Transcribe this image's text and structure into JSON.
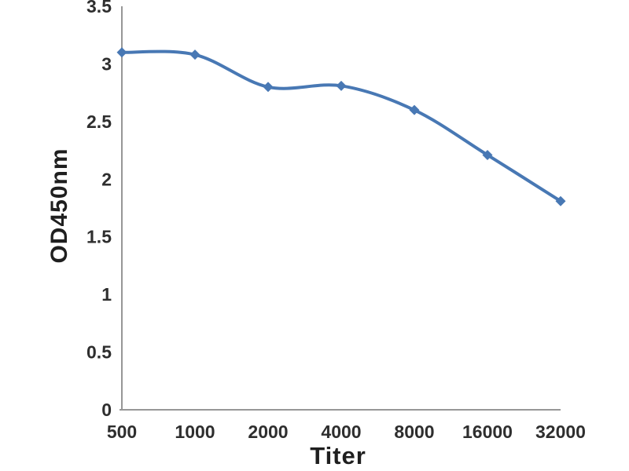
{
  "chart_data": {
    "type": "line",
    "title": "",
    "xlabel": "Titer",
    "ylabel": "OD450nm",
    "categories": [
      "500",
      "1000",
      "2000",
      "4000",
      "8000",
      "16000",
      "32000"
    ],
    "values": [
      3.1,
      3.08,
      2.8,
      2.81,
      2.6,
      2.21,
      1.81
    ],
    "ylim": [
      0,
      3.5
    ],
    "yticks": [
      0,
      0.5,
      1,
      1.5,
      2,
      2.5,
      3,
      3.5
    ],
    "ytick_labels": [
      "0",
      "0.5",
      "1",
      "1.5",
      "2",
      "2.5",
      "3",
      "3.5"
    ],
    "grid": false,
    "legend": "none",
    "smooth": true,
    "marker": "diamond",
    "line_color": "#4878b4",
    "axis_color": "#979797",
    "tick_text_color": "#2e2e2e",
    "background_color": "#ffffff"
  }
}
